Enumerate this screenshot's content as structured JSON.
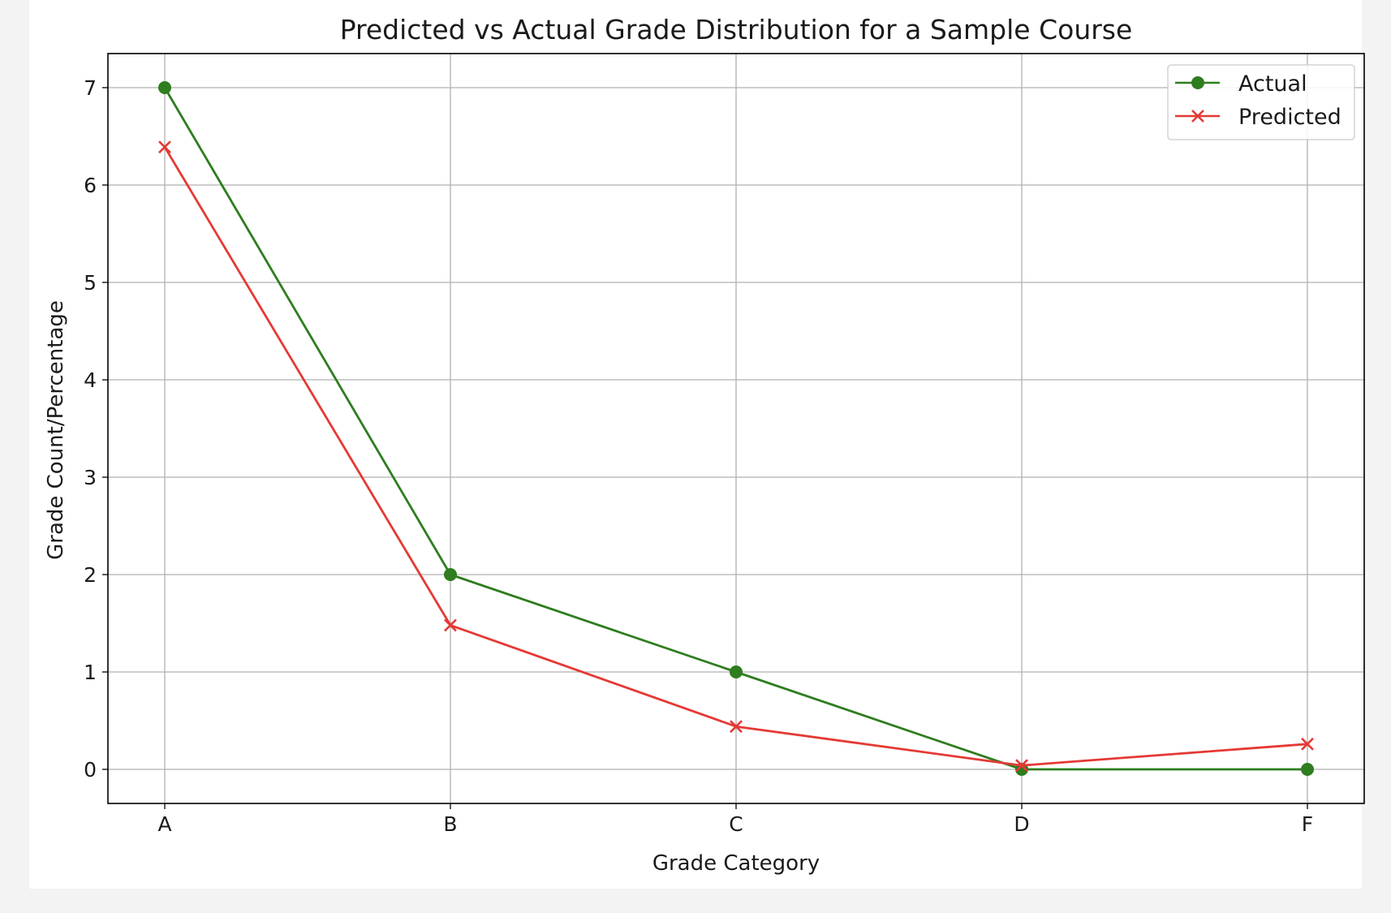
{
  "chart_data": {
    "type": "line",
    "title": "Predicted vs Actual Grade Distribution for a Sample Course",
    "xlabel": "Grade Category",
    "ylabel": "Grade Count/Percentage",
    "categories": [
      "A",
      "B",
      "C",
      "D",
      "F"
    ],
    "ylim": [
      -0.35,
      7.35
    ],
    "yticks": [
      0,
      1,
      2,
      3,
      4,
      5,
      6,
      7
    ],
    "grid": true,
    "legend_position": "top-right",
    "series": [
      {
        "name": "Actual",
        "marker": "circle",
        "color": "#2e7d1f",
        "values": [
          7,
          2,
          1,
          0,
          0
        ]
      },
      {
        "name": "Predicted",
        "marker": "x",
        "color": "#e53935",
        "values": [
          6.39,
          1.48,
          0.44,
          0.04,
          0.26
        ]
      }
    ]
  }
}
